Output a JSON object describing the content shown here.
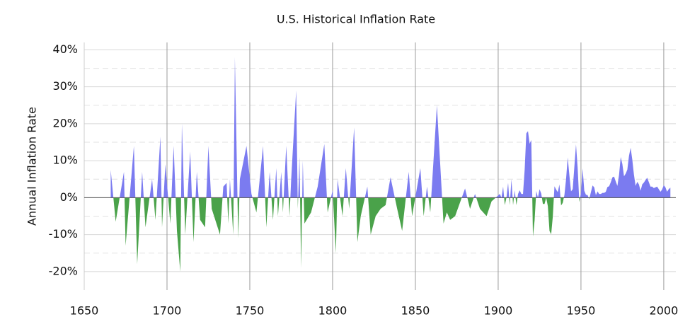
{
  "chart_data": {
    "type": "area",
    "title": "U.S. Historical Inflation Rate",
    "y_label": "Annual Inflation Rate",
    "x": [
      1666,
      1669,
      1674,
      1675,
      1680,
      1682,
      1685,
      1687,
      1691,
      1693,
      1696,
      1697,
      1699,
      1702,
      1704,
      1706,
      1708,
      1709,
      1711,
      1714,
      1716,
      1718,
      1720,
      1723,
      1725,
      1727,
      1732,
      1734,
      1736,
      1737,
      1738,
      1740,
      1741,
      1743,
      1744,
      1748,
      1751,
      1754,
      1758,
      1760,
      1762,
      1764,
      1766,
      1767,
      1769,
      1770,
      1772,
      1774,
      1775,
      1778,
      1779,
      1780,
      1781,
      1782,
      1783,
      1787,
      1791,
      1795,
      1797,
      1800,
      1802,
      1803,
      1806,
      1808,
      1810,
      1813,
      1815,
      1817,
      1819,
      1821,
      1823,
      1826,
      1829,
      1832,
      1835,
      1839,
      1842,
      1846,
      1848,
      1853,
      1855,
      1857,
      1859,
      1863,
      1867,
      1869,
      1871,
      1874,
      1880,
      1883,
      1886,
      1889,
      1893,
      1896,
      1901,
      1902,
      1903,
      1904,
      1905,
      1906,
      1907,
      1908,
      1909,
      1910,
      1911,
      1912,
      1913,
      1914,
      1915,
      1916,
      1917,
      1918,
      1919,
      1920,
      1921,
      1922,
      1923,
      1924,
      1925,
      1926,
      1927,
      1928,
      1929,
      1930,
      1931,
      1932,
      1933,
      1934,
      1935,
      1936,
      1937,
      1938,
      1939,
      1940,
      1941,
      1942,
      1943,
      1944,
      1945,
      1946,
      1947,
      1948,
      1949,
      1950,
      1951,
      1952,
      1953,
      1954,
      1955,
      1956,
      1957,
      1958,
      1959,
      1960,
      1961,
      1962,
      1963,
      1964,
      1965,
      1966,
      1967,
      1968,
      1969,
      1970,
      1971,
      1972,
      1973,
      1974,
      1975,
      1976,
      1977,
      1978,
      1979,
      1980,
      1981,
      1982,
      1983,
      1984,
      1985,
      1986,
      1987,
      1988,
      1989,
      1990,
      1991,
      1992,
      1993,
      1994,
      1995,
      1996,
      1997,
      1998,
      1999,
      2000,
      2001,
      2002,
      2003,
      2004
    ],
    "values": [
      7.5,
      -6.5,
      7,
      -13,
      14,
      -18,
      7,
      -8,
      5,
      -6,
      16.5,
      -8,
      9,
      -7,
      14,
      -9,
      -20,
      20,
      -10,
      12.5,
      -12,
      7,
      -6,
      -8,
      14,
      -3,
      -10,
      3,
      4,
      -7,
      5,
      -10,
      38,
      -11,
      5,
      14,
      1,
      -4,
      14,
      -8,
      7,
      -6,
      8,
      -5,
      7,
      -4,
      14,
      -5,
      5,
      29,
      -3,
      11,
      -19,
      10,
      -7,
      -4,
      3,
      14.5,
      -4,
      2,
      -15,
      5,
      -5,
      8,
      -3,
      19,
      -12,
      -5,
      -1,
      3,
      -10,
      -5,
      -3,
      -2,
      5.5,
      -3,
      -9,
      7,
      -5,
      8,
      -5,
      3,
      -4,
      25,
      -7,
      -4,
      -6,
      -5,
      2.5,
      -3,
      1,
      -3,
      -5,
      -1,
      1,
      0,
      3,
      -2,
      0,
      4,
      -2,
      5,
      -2,
      2,
      -2,
      1,
      2,
      1,
      1,
      7.6,
      17.4,
      18,
      14.6,
      15.6,
      -10.5,
      -6.1,
      1.8,
      0,
      2.3,
      1.1,
      -1.7,
      -1.7,
      0,
      -2.3,
      -9,
      -9.9,
      -5.1,
      3.1,
      2.2,
      1.5,
      3.6,
      -2.1,
      -1.4,
      0.7,
      5,
      10.9,
      6.1,
      1.7,
      2.3,
      8.3,
      14.4,
      8.1,
      -1.2,
      1.3,
      7.9,
      1.9,
      0.8,
      0.7,
      -0.4,
      1.5,
      3.3,
      2.8,
      0.7,
      1.7,
      1,
      1,
      1.3,
      1.3,
      1.6,
      2.9,
      3.1,
      4.2,
      5.5,
      5.7,
      4.4,
      3.2,
      6.2,
      11,
      9.1,
      5.8,
      6.5,
      7.6,
      11.3,
      13.5,
      10.3,
      6.2,
      3.2,
      4.3,
      3.6,
      1.9,
      3.6,
      4.1,
      4.8,
      5.4,
      4.2,
      3,
      3,
      2.6,
      2.8,
      3,
      2.3,
      1.6,
      2.2,
      3.4,
      2.8,
      1.6,
      2.3,
      2.7
    ],
    "color_positive": "#7b7bf0",
    "color_negative": "#4aa24a",
    "xlim": [
      1650,
      2007.3
    ],
    "xticks": [
      1650,
      1700,
      1750,
      1800,
      1850,
      1900,
      1950,
      2000
    ],
    "ylim": [
      -25,
      42
    ],
    "yticks": [
      {
        "value": -20,
        "label": "-20%"
      },
      {
        "value": -10,
        "label": "-10%"
      },
      {
        "value": 0,
        "label": "0%"
      },
      {
        "value": 10,
        "label": "10%"
      },
      {
        "value": 20,
        "label": "20%"
      },
      {
        "value": 30,
        "label": "30%"
      },
      {
        "value": 40,
        "label": "40%"
      }
    ],
    "y_minor_ticks": [
      -15,
      -5,
      5,
      15,
      25,
      35
    ],
    "grid": true
  }
}
